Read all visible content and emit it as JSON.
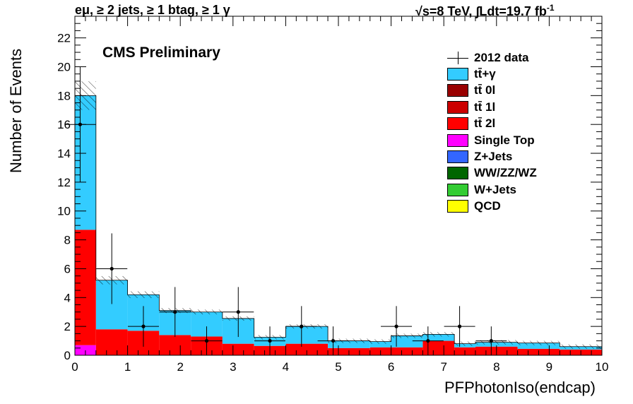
{
  "header": {
    "left": "eμ, ≥ 2 jets, ≥ 1 btag, ≥ 1 γ",
    "right": "√s=8 TeV,  ∫Ldt=19.7 fb",
    "right_sup": "-1"
  },
  "cms_label": "CMS Preliminary",
  "chart_data": {
    "type": "bar",
    "stacked": true,
    "xlabel": "PFPhotonIso(endcap)",
    "ylabel": "Number of Events",
    "xlim": [
      0,
      10
    ],
    "ylim": [
      0,
      23.5
    ],
    "x_ticks": [
      "0",
      "1",
      "2",
      "3",
      "4",
      "5",
      "6",
      "7",
      "8",
      "9",
      "10"
    ],
    "y_ticks": [
      "0",
      "2",
      "4",
      "6",
      "8",
      "10",
      "12",
      "14",
      "16",
      "18",
      "20",
      "22"
    ],
    "bin_edges": [
      0,
      0.4,
      1.0,
      1.6,
      2.2,
      2.8,
      3.4,
      4.0,
      4.8,
      5.6,
      6.0,
      6.6,
      7.2,
      7.6,
      8.4,
      9.2,
      10.0
    ],
    "series": [
      {
        "name": "Single Top",
        "color": "#ff00ff",
        "values": [
          0.7,
          0,
          0,
          0,
          0,
          0,
          0,
          0,
          0,
          0,
          0,
          0,
          0,
          0,
          0,
          0
        ]
      },
      {
        "name": "tt̄ 2l",
        "color": "#ff0000",
        "values": [
          8.0,
          1.8,
          1.7,
          1.4,
          1.3,
          0.8,
          0.65,
          0.8,
          0.5,
          0.55,
          0.55,
          1.0,
          0.55,
          0.6,
          0.45,
          0.4
        ]
      },
      {
        "name": "tt̄+γ",
        "color": "#33ccff",
        "values": [
          9.3,
          3.4,
          2.5,
          1.7,
          1.7,
          1.75,
          0.6,
          1.2,
          0.5,
          0.4,
          0.8,
          0.45,
          0.25,
          0.3,
          0.4,
          0.2
        ]
      }
    ],
    "data_points": [
      {
        "x": 0.1,
        "y": 16,
        "err": 4.0
      },
      {
        "x": 0.7,
        "y": 6,
        "err": 2.45
      },
      {
        "x": 1.3,
        "y": 2,
        "err": 1.41
      },
      {
        "x": 1.9,
        "y": 3,
        "err": 1.73
      },
      {
        "x": 2.5,
        "y": 1,
        "err": 1.0
      },
      {
        "x": 3.1,
        "y": 3,
        "err": 1.73
      },
      {
        "x": 3.7,
        "y": 1,
        "err": 1.0
      },
      {
        "x": 4.3,
        "y": 2,
        "err": 1.41
      },
      {
        "x": 4.9,
        "y": 1,
        "err": 1.0
      },
      {
        "x": 6.1,
        "y": 2,
        "err": 1.41
      },
      {
        "x": 6.7,
        "y": 1,
        "err": 1.0
      },
      {
        "x": 7.3,
        "y": 2,
        "err": 1.41
      },
      {
        "x": 7.9,
        "y": 1,
        "err": 1.0
      }
    ],
    "legend": {
      "position": "top-right",
      "entries": [
        {
          "label": "2012 data",
          "marker": "data"
        },
        {
          "label": "tt̄+γ",
          "color": "#33ccff"
        },
        {
          "label": "tt̄ 0l",
          "color": "#990000"
        },
        {
          "label": "tt̄ 1l",
          "color": "#cc0000"
        },
        {
          "label": "tt̄ 2l",
          "color": "#ff0000"
        },
        {
          "label": "Single Top",
          "color": "#ff00ff"
        },
        {
          "label": "Z+Jets",
          "color": "#3366ff"
        },
        {
          "label": "WW/ZZ/WZ",
          "color": "#006600"
        },
        {
          "label": "W+Jets",
          "color": "#33cc33"
        },
        {
          "label": "QCD",
          "color": "#ffff00"
        }
      ]
    }
  }
}
